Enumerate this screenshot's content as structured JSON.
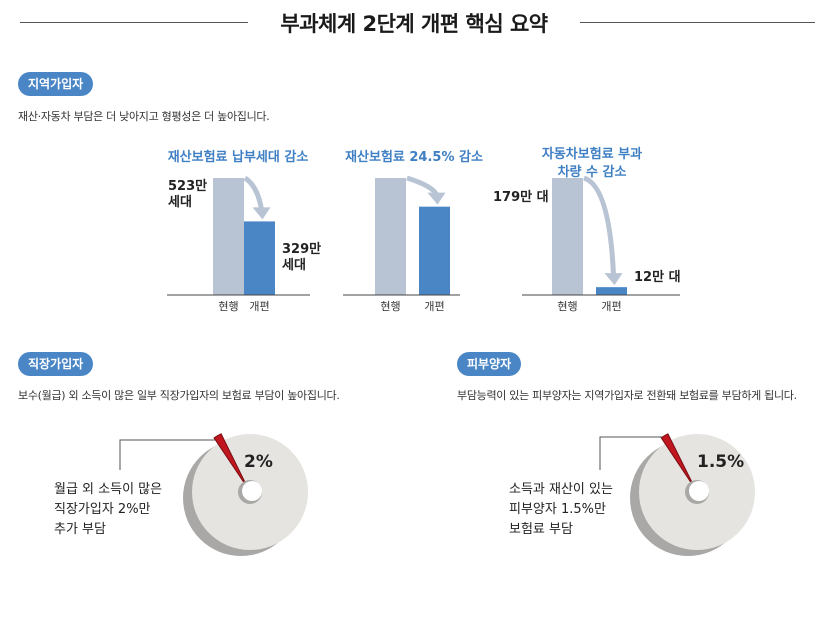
{
  "title": "부과체계 2단계 개편 핵심 요약",
  "regional": {
    "badge": "지역가입자",
    "description": "재산·자동차 부담은 더 낮아지고 형평성은 더 높아집니다."
  },
  "employee": {
    "badge": "직장가입자",
    "description": "보수(월급) 외 소득이 많은 일부 직장가입자의 보험료 부담이 높아집니다."
  },
  "dependent": {
    "badge": "피부양자",
    "description": "부담능력이 있는 피부양자는 지역가입자로 전환돼 보험료를 부담하게 됩니다."
  },
  "colors": {
    "bar_current": "#b8c3d3",
    "bar_reform": "#4a86c5",
    "heading": "#3f7fc3",
    "badge": "#4a86c5",
    "arrow": "#b8c3d3",
    "donut": "#e6e4e1",
    "donut_shadow": "#a9a8a6",
    "wedge": "#c0161f"
  },
  "chart_data": [
    {
      "type": "bar",
      "title": "재산보험료 납부세대 감소",
      "categories": [
        "현행",
        "개편"
      ],
      "values": [
        523,
        329
      ],
      "value_labels": [
        "523만\n세대",
        "329만\n세대"
      ],
      "unit": "만 세대"
    },
    {
      "type": "bar",
      "title": "재산보험료 24.5% 감소",
      "categories": [
        "현행",
        "개편"
      ],
      "values": [
        100,
        75.5
      ],
      "value_labels": [
        "",
        ""
      ],
      "unit": "%"
    },
    {
      "type": "bar",
      "title": "자동차보험료 부과\n차량 수 감소",
      "categories": [
        "현행",
        "개편"
      ],
      "values": [
        179,
        12
      ],
      "value_labels": [
        "179만 대",
        "12만 대"
      ],
      "unit": "만 대"
    },
    {
      "type": "pie",
      "values": [
        2,
        98
      ],
      "value_label": "2%",
      "annotation": "월급 외 소득이 많은\n직장가입자 2%만\n추가 부담"
    },
    {
      "type": "pie",
      "values": [
        1.5,
        98.5
      ],
      "value_label": "1.5%",
      "annotation": "소득과 재산이 있는\n피부양자 1.5%만\n보험료 부담"
    }
  ]
}
